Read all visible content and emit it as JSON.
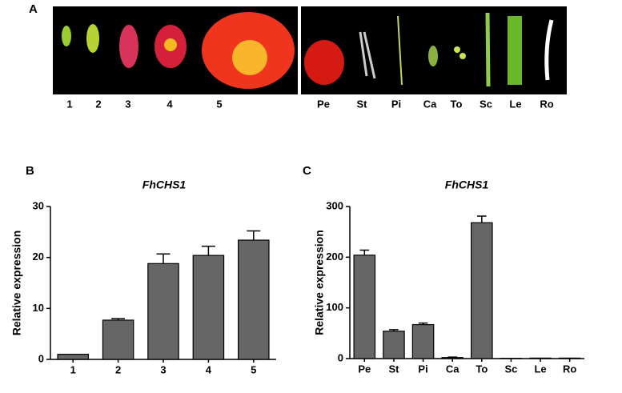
{
  "panels": [
    "A",
    "B",
    "C"
  ],
  "photo": {
    "stage_labels": [
      "1",
      "2",
      "3",
      "4",
      "5"
    ],
    "tissue_labels": [
      "Pe",
      "St",
      "Pi",
      "Ca",
      "To",
      "Sc",
      "Le",
      "Ro"
    ]
  },
  "chart_data": [
    {
      "type": "bar",
      "title": "FhCHS1",
      "ylabel": "Relative expression",
      "categories": [
        "1",
        "2",
        "3",
        "4",
        "5"
      ],
      "values": [
        1.0,
        7.7,
        18.8,
        20.4,
        23.4
      ],
      "errors": [
        0,
        0.3,
        1.9,
        1.8,
        1.8
      ],
      "color": "#666666",
      "ylim": [
        0,
        30
      ],
      "yticks": [
        0,
        10,
        20,
        30
      ]
    },
    {
      "type": "bar",
      "title": "FhCHS1",
      "ylabel": "Relative expression",
      "categories": [
        "Pe",
        "St",
        "Pi",
        "Ca",
        "To",
        "Sc",
        "Le",
        "Ro"
      ],
      "values": [
        204,
        54,
        67,
        2,
        268,
        0.5,
        1,
        1
      ],
      "errors": [
        10,
        3,
        3,
        1,
        13,
        0,
        0,
        0
      ],
      "color": "#666666",
      "ylim": [
        0,
        300
      ],
      "yticks": [
        0,
        100,
        200,
        300
      ]
    }
  ]
}
